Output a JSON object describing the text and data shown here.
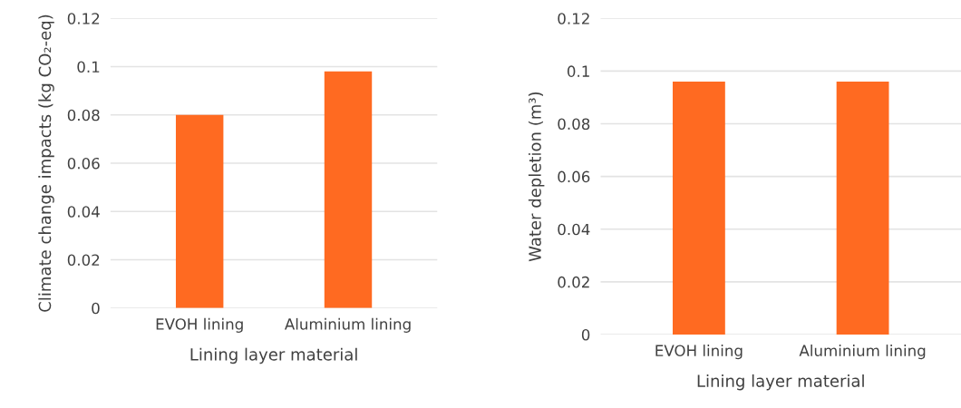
{
  "chart_data": [
    {
      "type": "bar",
      "categories": [
        "EVOH lining",
        "Aluminium lining"
      ],
      "values": [
        0.08,
        0.098
      ],
      "color": "#ff6a21",
      "xlabel": "Lining layer material",
      "ylabel": "Climate change impacts (kg CO₂-eq)",
      "ylim": [
        0,
        0.12
      ],
      "yticks": [
        0,
        0.02,
        0.04,
        0.06,
        0.08,
        0.1,
        0.12
      ],
      "grid": "y"
    },
    {
      "type": "bar",
      "categories": [
        "EVOH lining",
        "Aluminium lining"
      ],
      "values": [
        0.096,
        0.096
      ],
      "color": "#ff6a21",
      "xlabel": "Lining layer material",
      "ylabel": "Water depletion (m³)",
      "ylim": [
        0,
        0.12
      ],
      "yticks": [
        0,
        0.02,
        0.04,
        0.06,
        0.08,
        0.1,
        0.12
      ],
      "grid": "y"
    }
  ]
}
